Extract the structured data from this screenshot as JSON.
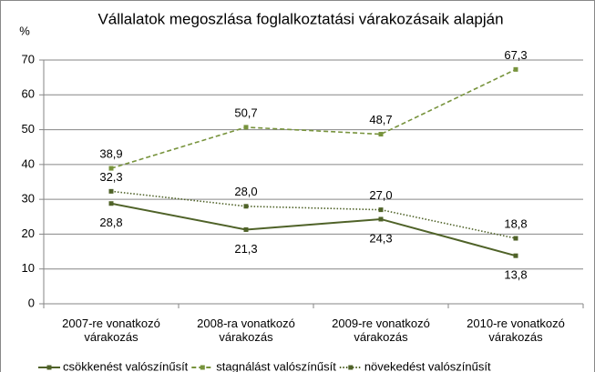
{
  "chart_data": {
    "type": "line",
    "title": "Vállalatok megoszlása foglalkoztatási várakozásaik alapján",
    "y_label": "%",
    "categories": [
      "2007-re vonatkozó várakozás",
      "2008-ra vonatkozó várakozás",
      "2009-re vonatkozó várakozás",
      "2010-re vonatkozó várakozás"
    ],
    "series": [
      {
        "name": "csökkenést valószínűsít",
        "color": "#4f6228",
        "dash": "solid",
        "values": [
          28.8,
          21.3,
          24.3,
          13.8
        ],
        "value_labels": [
          "28,8",
          "21,3",
          "24,3",
          "13,8"
        ]
      },
      {
        "name": "stagnálást valószínűsít",
        "color": "#77933c",
        "dash": "dashed",
        "values": [
          38.9,
          50.7,
          48.7,
          67.3
        ],
        "value_labels": [
          "38,9",
          "50,7",
          "48,7",
          "67,3"
        ]
      },
      {
        "name": "növekedést valószínűsít",
        "color": "#4f6228",
        "dash": "dotted",
        "values": [
          32.3,
          28.0,
          27.0,
          18.8
        ],
        "value_labels": [
          "32,3",
          "28,0",
          "27,0",
          "18,8"
        ]
      }
    ],
    "ylim": [
      0,
      70
    ],
    "yticks": [
      0,
      10,
      20,
      30,
      40,
      50,
      60,
      70
    ],
    "grid": true,
    "legend": "bottom"
  }
}
